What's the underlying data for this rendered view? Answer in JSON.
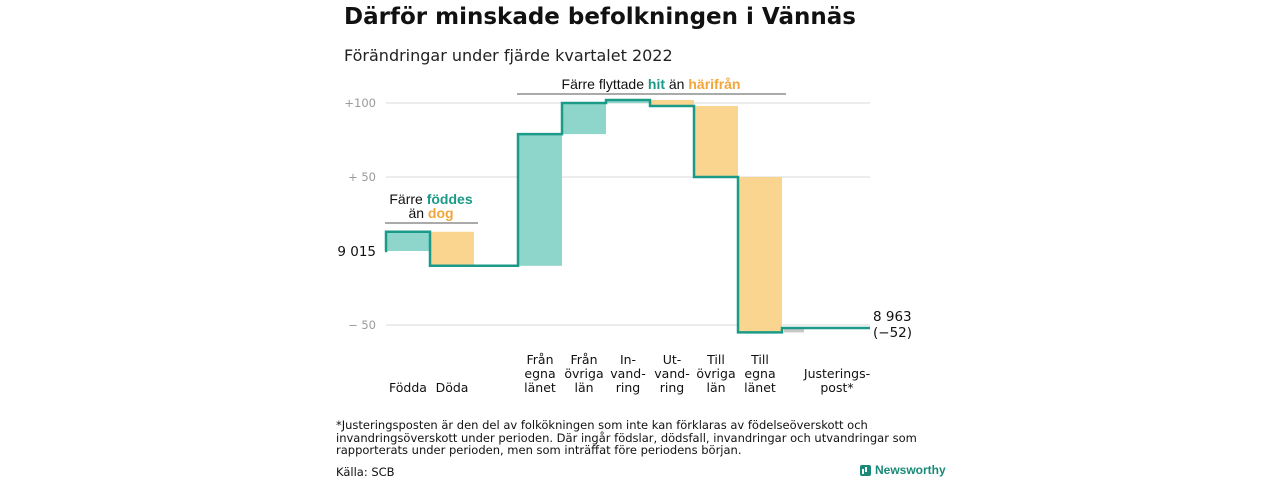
{
  "header": {
    "title": "Därför minskade befolkningen i Vännäs",
    "subtitle": "Förändringar under fjärde kvartalet 2022"
  },
  "chart_data": {
    "type": "waterfall",
    "start_value": 9015,
    "start_label": "9 015",
    "end_value": 8963,
    "end_label": "8 963",
    "end_change_label": "(−52)",
    "ylim": [
      -60,
      105
    ],
    "y_ticks": [
      {
        "value": 100,
        "label": "+100"
      },
      {
        "value": 50,
        "label": "+ 50"
      },
      {
        "value": -50,
        "label": "− 50"
      }
    ],
    "grid": true,
    "categories": [
      {
        "label": [
          "Födda"
        ],
        "delta": 13
      },
      {
        "label": [
          "Döda"
        ],
        "delta": -23
      },
      {
        "label": [
          "Från",
          "egna",
          "länet"
        ],
        "delta": 89
      },
      {
        "label": [
          "Från",
          "övriga",
          "län"
        ],
        "delta": 21
      },
      {
        "label": [
          "In-",
          "vand-",
          "ring"
        ],
        "delta": 2
      },
      {
        "label": [
          "Ut-",
          "vand-",
          "ring"
        ],
        "delta": -4
      },
      {
        "label": [
          "Till",
          "övriga",
          "län"
        ],
        "delta": -48
      },
      {
        "label": [
          "Till",
          "egna",
          "länet"
        ],
        "delta": -105
      },
      {
        "label": [
          "Justerings-",
          "post*"
        ],
        "delta": 3
      }
    ],
    "colors": {
      "increase": "#8ed6cc",
      "decrease": "#fad590",
      "adjustment": "#c8c8c8",
      "line": "#1a9a87",
      "grid": "#d8d8d8",
      "teal_text": "#1a9a87",
      "orange_text": "#f2a53a"
    },
    "annotations": {
      "births": {
        "pre": "Färre",
        "mid": "föddes",
        "line2_pre": "än",
        "line2_mid": "dog"
      },
      "migration": {
        "pre": "Färre flyttade",
        "mid": "hit",
        "post": "än",
        "end": "härifrån"
      }
    }
  },
  "footer": {
    "footnote": "*Justeringsposten är den del av folkökningen som inte kan förklaras av födelseöverskott och invandringsöverskott under perioden. Där ingår födslar, dödsfall, invandringar och utvandringar som rapporterats under perioden, men som inträffat före periodens början.",
    "source": "Källa: SCB",
    "brand": "Newsworthy"
  }
}
